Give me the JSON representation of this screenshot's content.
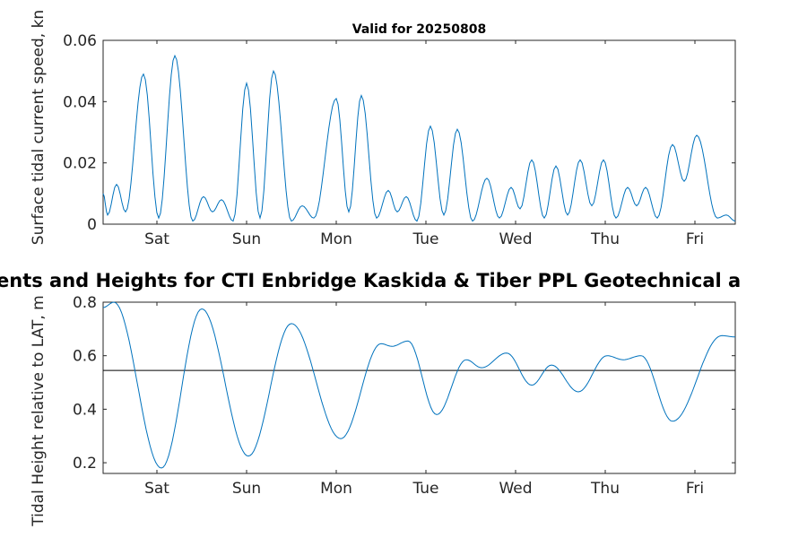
{
  "main_title": "ents and Heights for CTI Enbridge  Kaskida & Tiber PPL Geotechnical a",
  "chart_data": [
    {
      "type": "line",
      "title": "Valid for 20250808",
      "ylabel": "Surface tidal current speed, kn",
      "xlabel": "",
      "line_color": "#0072BD",
      "axis_color": "#262626",
      "grid": false,
      "legend": null,
      "xlim": [
        0,
        7.05
      ],
      "ylim": [
        0,
        0.06
      ],
      "yticks": [
        0,
        0.02,
        0.04,
        0.06
      ],
      "ytick_labels": [
        "0",
        "0.02",
        "0.04",
        "0.06"
      ],
      "xticks": [
        0.6,
        1.6,
        2.6,
        3.6,
        4.6,
        5.6,
        6.6
      ],
      "xtick_labels": [
        "Sat",
        "Sun",
        "Mon",
        "Tue",
        "Wed",
        "Thu",
        "Fri"
      ],
      "x_units": "days",
      "series": [
        {
          "name": "surface-current-speed",
          "extrema_points": [
            [
              0,
              0.01
            ],
            [
              0.05,
              0.003
            ],
            [
              0.15,
              0.013
            ],
            [
              0.25,
              0.004
            ],
            [
              0.45,
              0.049
            ],
            [
              0.62,
              0.002
            ],
            [
              0.8,
              0.055
            ],
            [
              1,
              0.001
            ],
            [
              1.12,
              0.009
            ],
            [
              1.22,
              0.004
            ],
            [
              1.32,
              0.008
            ],
            [
              1.45,
              0.001
            ],
            [
              1.6,
              0.046
            ],
            [
              1.75,
              0.002
            ],
            [
              1.9,
              0.05
            ],
            [
              2.1,
              0.001
            ],
            [
              2.22,
              0.006
            ],
            [
              2.35,
              0.002
            ],
            [
              2.6,
              0.041
            ],
            [
              2.74,
              0.004
            ],
            [
              2.88,
              0.042
            ],
            [
              3.05,
              0.002
            ],
            [
              3.18,
              0.011
            ],
            [
              3.28,
              0.004
            ],
            [
              3.38,
              0.009
            ],
            [
              3.5,
              0.001
            ],
            [
              3.65,
              0.032
            ],
            [
              3.8,
              0.003
            ],
            [
              3.95,
              0.031
            ],
            [
              4.12,
              0.001
            ],
            [
              4.28,
              0.015
            ],
            [
              4.42,
              0.002
            ],
            [
              4.55,
              0.012
            ],
            [
              4.65,
              0.005
            ],
            [
              4.78,
              0.021
            ],
            [
              4.92,
              0.002
            ],
            [
              5.05,
              0.019
            ],
            [
              5.18,
              0.003
            ],
            [
              5.32,
              0.021
            ],
            [
              5.45,
              0.006
            ],
            [
              5.58,
              0.021
            ],
            [
              5.72,
              0.002
            ],
            [
              5.85,
              0.012
            ],
            [
              5.95,
              0.006
            ],
            [
              6.05,
              0.012
            ],
            [
              6.18,
              0.002
            ],
            [
              6.35,
              0.026
            ],
            [
              6.48,
              0.014
            ],
            [
              6.62,
              0.029
            ],
            [
              6.85,
              0.002
            ],
            [
              6.95,
              0.003
            ],
            [
              7.05,
              0.001
            ]
          ]
        }
      ]
    },
    {
      "type": "line",
      "title": "",
      "ylabel": "Tidal Height relative to LAT, m",
      "xlabel": "",
      "line_color": "#0072BD",
      "axis_color": "#262626",
      "grid": false,
      "legend": null,
      "mean_line": 0.545,
      "xlim": [
        0,
        7.05
      ],
      "ylim": [
        0.16,
        0.8
      ],
      "yticks": [
        0.2,
        0.4,
        0.6,
        0.8
      ],
      "ytick_labels": [
        "0.2",
        "0.4",
        "0.6",
        "0.8"
      ],
      "xticks": [
        0.6,
        1.6,
        2.6,
        3.6,
        4.6,
        5.6,
        6.6
      ],
      "xtick_labels": [
        "Sat",
        "Sun",
        "Mon",
        "Tue",
        "Wed",
        "Thu",
        "Fri"
      ],
      "x_units": "days",
      "series": [
        {
          "name": "tidal-height",
          "extrema_points": [
            [
              0,
              0.78
            ],
            [
              0.12,
              0.8
            ],
            [
              0.65,
              0.18
            ],
            [
              1.1,
              0.775
            ],
            [
              1.62,
              0.225
            ],
            [
              2.1,
              0.72
            ],
            [
              2.65,
              0.29
            ],
            [
              3.1,
              0.645
            ],
            [
              3.22,
              0.635
            ],
            [
              3.4,
              0.655
            ],
            [
              3.72,
              0.38
            ],
            [
              4.05,
              0.585
            ],
            [
              4.22,
              0.555
            ],
            [
              4.5,
              0.61
            ],
            [
              4.78,
              0.49
            ],
            [
              5.0,
              0.565
            ],
            [
              5.3,
              0.465
            ],
            [
              5.62,
              0.6
            ],
            [
              5.8,
              0.585
            ],
            [
              6.0,
              0.6
            ],
            [
              6.35,
              0.355
            ],
            [
              6.9,
              0.675
            ],
            [
              7.05,
              0.67
            ]
          ]
        }
      ]
    }
  ]
}
